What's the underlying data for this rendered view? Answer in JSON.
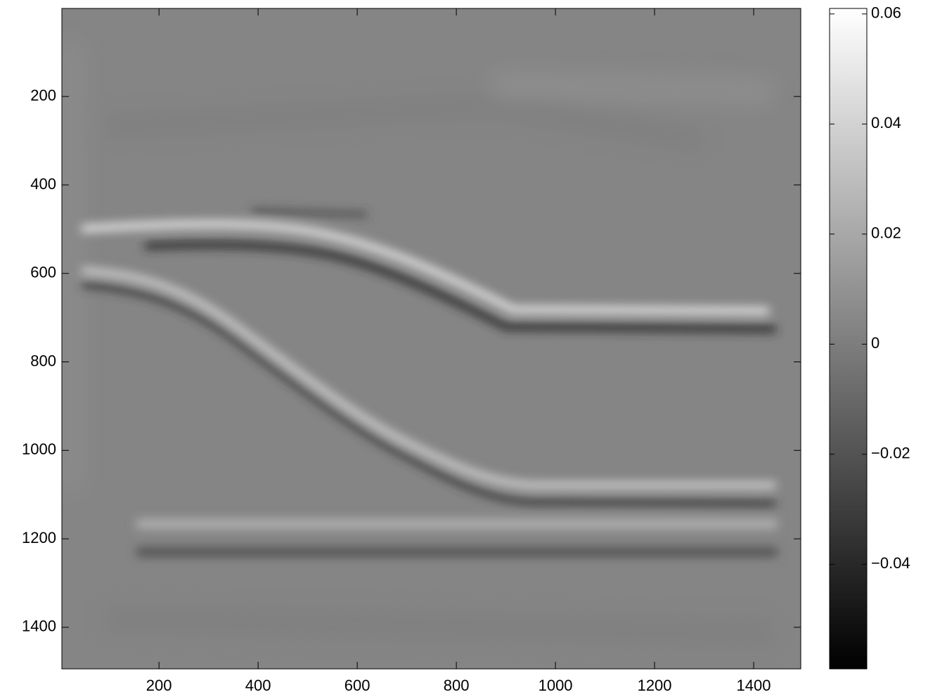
{
  "chart_data": {
    "type": "image",
    "colormap": "gray",
    "xlim": [
      4,
      1495
    ],
    "ylim": [
      1,
      1494
    ],
    "y_reversed": true,
    "xticks": [
      200,
      400,
      600,
      800,
      1000,
      1200,
      1400
    ],
    "yticks": [
      200,
      400,
      600,
      800,
      1000,
      1200,
      1400
    ],
    "colorbar": {
      "clim": [
        -0.059,
        0.061
      ],
      "ticks": [
        {
          "value": -0.04,
          "label": "−0.04"
        },
        {
          "value": -0.02,
          "label": "−0.02"
        },
        0,
        0.02,
        0.04,
        0.06
      ]
    }
  }
}
